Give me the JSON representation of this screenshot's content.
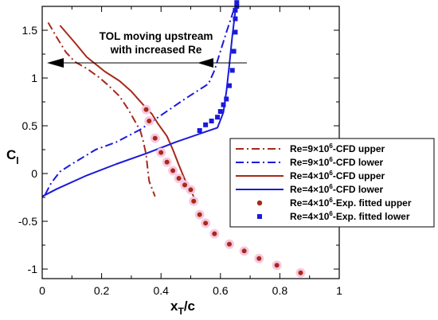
{
  "chart_data": {
    "type": "line",
    "xlabel": {
      "main": "x",
      "sub": "T",
      "rest": "/c"
    },
    "ylabel": {
      "main": "C",
      "sub": "l"
    },
    "xlim": [
      0,
      1
    ],
    "ylim": [
      -1.1,
      1.75
    ],
    "x_ticks": [
      0,
      0.2,
      0.4,
      0.6,
      0.8,
      1
    ],
    "x_tick_labels": [
      "0",
      "0.2",
      "0.4",
      "0.6",
      "0.8",
      "1"
    ],
    "y_ticks": [
      -1,
      -0.5,
      0,
      0.5,
      1,
      1.5
    ],
    "y_tick_labels": [
      "-1",
      "-0.5",
      "0",
      "0.5",
      "1",
      "1.5"
    ],
    "grid": false,
    "legend_position": "right",
    "annotation": {
      "text": "TOL moving upstream with increased Re",
      "lines": [
        "TOL moving upstream",
        "with increased Re"
      ]
    },
    "series": [
      {
        "name": "Re=9×10⁶-CFD upper",
        "name_parts": [
          "Re=9×10",
          "6",
          "-CFD upper"
        ],
        "style": "dash-dot",
        "color": "#a52a1a",
        "x": [
          0.02,
          0.05,
          0.08,
          0.11,
          0.15,
          0.19,
          0.22,
          0.26,
          0.29,
          0.31,
          0.33,
          0.34,
          0.35,
          0.355,
          0.36,
          0.38
        ],
        "y": [
          1.58,
          1.42,
          1.27,
          1.17,
          1.1,
          1.01,
          0.93,
          0.81,
          0.67,
          0.56,
          0.45,
          0.34,
          0.2,
          0.05,
          -0.08,
          -0.24
        ]
      },
      {
        "name": "Re=9×10⁶-CFD lower",
        "name_parts": [
          "Re=9×10",
          "6",
          "-CFD lower"
        ],
        "style": "dash-dot",
        "color": "#1a1adc",
        "x": [
          0.01,
          0.03,
          0.06,
          0.1,
          0.18,
          0.25,
          0.33,
          0.4,
          0.48,
          0.56,
          0.58,
          0.6,
          0.62,
          0.65
        ],
        "y": [
          -0.22,
          -0.1,
          0.02,
          0.1,
          0.25,
          0.33,
          0.46,
          0.61,
          0.78,
          0.94,
          1.08,
          1.28,
          1.48,
          1.76
        ]
      },
      {
        "name": "Re=4×10⁶-CFD upper",
        "name_parts": [
          "Re=4×10",
          "6",
          "-CFD upper"
        ],
        "style": "solid",
        "color": "#a52a1a",
        "x": [
          0.06,
          0.11,
          0.15,
          0.21,
          0.26,
          0.3,
          0.34,
          0.37,
          0.39,
          0.42,
          0.44,
          0.46,
          0.48,
          0.51
        ],
        "y": [
          1.55,
          1.37,
          1.22,
          1.07,
          0.97,
          0.86,
          0.72,
          0.62,
          0.52,
          0.39,
          0.25,
          0.09,
          -0.06,
          -0.24
        ]
      },
      {
        "name": "Re=4×10⁶-CFD lower",
        "name_parts": [
          "Re=4×10",
          "6",
          "-CFD lower"
        ],
        "style": "solid",
        "color": "#1a1adc",
        "x": [
          0.0,
          0.05,
          0.15,
          0.25,
          0.35,
          0.45,
          0.59,
          0.61,
          0.62,
          0.63,
          0.64,
          0.65
        ],
        "y": [
          -0.24,
          -0.16,
          -0.02,
          0.1,
          0.21,
          0.33,
          0.48,
          0.64,
          0.86,
          1.14,
          1.44,
          1.7
        ]
      },
      {
        "name": "Re=4×10⁶-Exp. fitted upper",
        "name_parts": [
          "Re=4×10",
          "6",
          "-Exp. fitted upper"
        ],
        "style": "marker-circle",
        "color": "#a52a1a",
        "x": [
          0.35,
          0.36,
          0.38,
          0.4,
          0.42,
          0.44,
          0.46,
          0.48,
          0.5,
          0.51,
          0.53,
          0.55,
          0.58,
          0.63,
          0.68,
          0.73,
          0.79,
          0.87
        ],
        "y": [
          0.67,
          0.55,
          0.37,
          0.22,
          0.12,
          0.03,
          -0.05,
          -0.12,
          -0.17,
          -0.29,
          -0.43,
          -0.52,
          -0.63,
          -0.74,
          -0.81,
          -0.89,
          -0.96,
          -1.04
        ]
      },
      {
        "name": "Re=4×10⁶-Exp. fitted lower",
        "name_parts": [
          "Re=4×10",
          "6",
          "-Exp. fitted lower"
        ],
        "style": "marker-square",
        "color": "#1a1adc",
        "x": [
          0.53,
          0.55,
          0.57,
          0.59,
          0.6,
          0.61,
          0.62,
          0.63,
          0.64,
          0.645,
          0.65,
          0.65,
          0.65,
          0.655,
          0.655
        ],
        "y": [
          0.45,
          0.51,
          0.55,
          0.59,
          0.65,
          0.72,
          0.78,
          0.92,
          1.08,
          1.28,
          1.48,
          1.62,
          1.71,
          1.75,
          1.79
        ]
      }
    ]
  }
}
